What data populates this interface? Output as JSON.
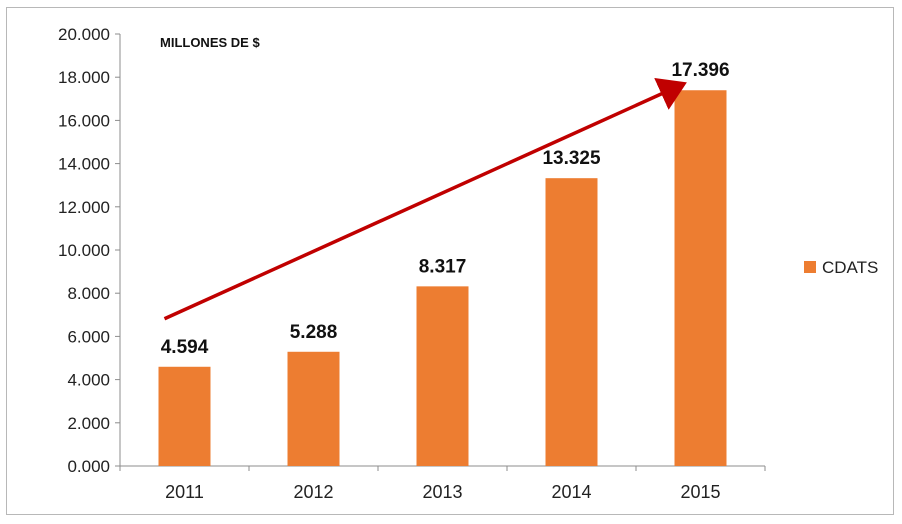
{
  "chart_data": {
    "type": "bar",
    "unit_label": "MILLONES DE $",
    "categories": [
      "2011",
      "2012",
      "2013",
      "2014",
      "2015"
    ],
    "series": [
      {
        "name": "CDATS",
        "values": [
          4594,
          5288,
          8317,
          13325,
          17396
        ],
        "value_labels": [
          "4.594",
          "5.288",
          "8.317",
          "13.325",
          "17.396"
        ],
        "color": "#ED7D31"
      }
    ],
    "ylim": [
      0,
      20000
    ],
    "ytick_values": [
      0,
      2000,
      4000,
      6000,
      8000,
      10000,
      12000,
      14000,
      16000,
      18000,
      20000
    ],
    "ytick_labels": [
      "0.000",
      "2.000",
      "4.000",
      "6.000",
      "8.000",
      "10.000",
      "12.000",
      "14.000",
      "16.000",
      "18.000",
      "20.000"
    ],
    "grid": false,
    "legend_position": "right",
    "trend_arrow_color": "#C00000"
  }
}
